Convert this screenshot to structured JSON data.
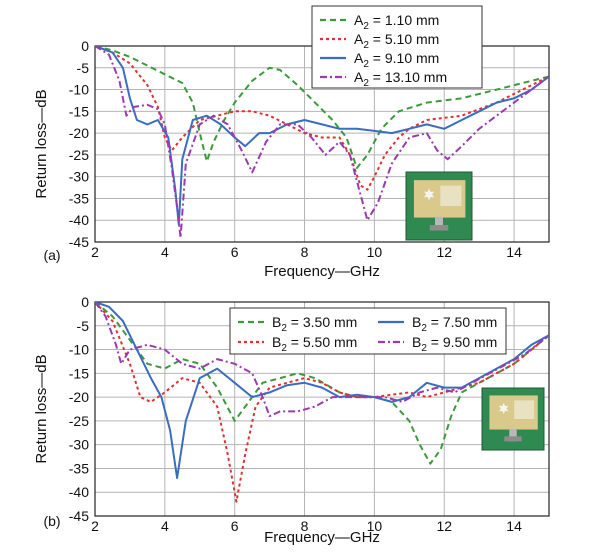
{
  "chart_data": [
    {
      "type": "line",
      "panel_label": "(a)",
      "xlabel": "Frequency—GHz",
      "ylabel": "Return loss—dB",
      "xlim": [
        2,
        15
      ],
      "ylim": [
        -45,
        0
      ],
      "xticks": [
        2,
        4,
        6,
        8,
        10,
        12,
        14
      ],
      "yticks": [
        0,
        -5,
        -10,
        -15,
        -20,
        -25,
        -30,
        -35,
        -40,
        -45
      ],
      "grid": true,
      "legend_position": "top-right",
      "inset": "antenna-photo",
      "series": [
        {
          "name": "A",
          "subscript": "2",
          "value_text": " = 1.10 mm",
          "color": "#3a9a3a",
          "dash": "6,4",
          "points": [
            [
              2,
              0
            ],
            [
              2.5,
              -1
            ],
            [
              3,
              -2.5
            ],
            [
              3.5,
              -4.5
            ],
            [
              4,
              -6.5
            ],
            [
              4.5,
              -8.5
            ],
            [
              4.8,
              -13
            ],
            [
              5,
              -20
            ],
            [
              5.2,
              -26.5
            ],
            [
              5.4,
              -22
            ],
            [
              5.7,
              -17
            ],
            [
              6,
              -13
            ],
            [
              6.5,
              -8
            ],
            [
              7,
              -5
            ],
            [
              7.3,
              -5.5
            ],
            [
              7.8,
              -9
            ],
            [
              8.3,
              -13
            ],
            [
              8.8,
              -17
            ],
            [
              9.2,
              -21
            ],
            [
              9.5,
              -28
            ],
            [
              9.8,
              -25
            ],
            [
              10.2,
              -19
            ],
            [
              10.7,
              -15
            ],
            [
              11.5,
              -13
            ],
            [
              12.5,
              -12
            ],
            [
              13.5,
              -10
            ],
            [
              14.5,
              -8
            ],
            [
              15,
              -7
            ]
          ]
        },
        {
          "name": "A",
          "subscript": "2",
          "value_text": " = 5.10 mm",
          "color": "#e03030",
          "dash": "3,3",
          "points": [
            [
              2,
              0
            ],
            [
              2.5,
              -1.5
            ],
            [
              3,
              -4
            ],
            [
              3.5,
              -9
            ],
            [
              3.8,
              -14
            ],
            [
              4,
              -21
            ],
            [
              4.2,
              -24
            ],
            [
              4.5,
              -21
            ],
            [
              5,
              -17
            ],
            [
              5.5,
              -16
            ],
            [
              6,
              -15
            ],
            [
              6.5,
              -15
            ],
            [
              7,
              -16
            ],
            [
              7.5,
              -18
            ],
            [
              8,
              -20
            ],
            [
              8.5,
              -21
            ],
            [
              9,
              -21
            ],
            [
              9.3,
              -25
            ],
            [
              9.6,
              -32
            ],
            [
              9.8,
              -33
            ],
            [
              10,
              -30
            ],
            [
              10.3,
              -25
            ],
            [
              10.7,
              -21
            ],
            [
              11,
              -19
            ],
            [
              11.5,
              -17
            ],
            [
              12.5,
              -16
            ],
            [
              13.5,
              -13
            ],
            [
              14.5,
              -9
            ],
            [
              15,
              -7
            ]
          ]
        },
        {
          "name": "A",
          "subscript": "2",
          "value_text": " = 9.10 mm",
          "color": "#3a6dbf",
          "dash": "",
          "points": [
            [
              2,
              0
            ],
            [
              2.5,
              -1.5
            ],
            [
              2.8,
              -5
            ],
            [
              3,
              -12
            ],
            [
              3.2,
              -17
            ],
            [
              3.5,
              -18
            ],
            [
              3.8,
              -17
            ],
            [
              4.1,
              -21
            ],
            [
              4.3,
              -33
            ],
            [
              4.4,
              -41
            ],
            [
              4.5,
              -26
            ],
            [
              4.8,
              -17
            ],
            [
              5.2,
              -16
            ],
            [
              5.6,
              -18
            ],
            [
              6,
              -21
            ],
            [
              6.3,
              -23
            ],
            [
              6.7,
              -20
            ],
            [
              7,
              -20
            ],
            [
              7.5,
              -18
            ],
            [
              8,
              -17
            ],
            [
              8.5,
              -18
            ],
            [
              9,
              -19
            ],
            [
              9.5,
              -19
            ],
            [
              10,
              -19.5
            ],
            [
              10.5,
              -20
            ],
            [
              11,
              -19
            ],
            [
              11.5,
              -18
            ],
            [
              12,
              -19
            ],
            [
              12.5,
              -17
            ],
            [
              13,
              -15
            ],
            [
              13.5,
              -13
            ],
            [
              14,
              -12
            ],
            [
              14.5,
              -10
            ],
            [
              15,
              -7
            ]
          ]
        },
        {
          "name": "A",
          "subscript": "2",
          "value_text": " = 13.10 mm",
          "color": "#9a3ab0",
          "dash": "7,3,2,3",
          "points": [
            [
              2,
              0
            ],
            [
              2.4,
              -2
            ],
            [
              2.7,
              -8
            ],
            [
              2.9,
              -16
            ],
            [
              3.1,
              -14
            ],
            [
              3.5,
              -13.5
            ],
            [
              3.8,
              -14.5
            ],
            [
              4,
              -18
            ],
            [
              4.2,
              -28
            ],
            [
              4.35,
              -37
            ],
            [
              4.45,
              -44
            ],
            [
              4.6,
              -27
            ],
            [
              5,
              -18
            ],
            [
              5.4,
              -16
            ],
            [
              5.8,
              -18
            ],
            [
              6.2,
              -24
            ],
            [
              6.5,
              -29
            ],
            [
              6.9,
              -22
            ],
            [
              7.3,
              -18
            ],
            [
              7.8,
              -18
            ],
            [
              8.2,
              -21
            ],
            [
              8.6,
              -25
            ],
            [
              9,
              -22
            ],
            [
              9.3,
              -25
            ],
            [
              9.6,
              -34
            ],
            [
              9.8,
              -40
            ],
            [
              10.1,
              -36
            ],
            [
              10.5,
              -27
            ],
            [
              11,
              -21
            ],
            [
              11.5,
              -20
            ],
            [
              11.8,
              -24
            ],
            [
              12.1,
              -26
            ],
            [
              12.5,
              -23
            ],
            [
              13,
              -19
            ],
            [
              13.5,
              -16
            ],
            [
              14,
              -13
            ],
            [
              14.5,
              -10
            ],
            [
              15,
              -7
            ]
          ]
        }
      ]
    },
    {
      "type": "line",
      "panel_label": "(b)",
      "xlabel": "Frequency—GHz",
      "ylabel": "Return loss—dB",
      "xlim": [
        2,
        15
      ],
      "ylim": [
        -45,
        0
      ],
      "xticks": [
        2,
        4,
        6,
        8,
        10,
        12,
        14
      ],
      "yticks": [
        0,
        -5,
        -10,
        -15,
        -20,
        -25,
        -30,
        -35,
        -40,
        -45
      ],
      "grid": true,
      "legend_position": "top-right",
      "inset": "antenna-photo",
      "series": [
        {
          "name": "B",
          "subscript": "2",
          "value_text": " = 3.50 mm",
          "color": "#3a9a3a",
          "dash": "6,4",
          "points": [
            [
              2,
              0
            ],
            [
              2.5,
              -3
            ],
            [
              3,
              -8
            ],
            [
              3.5,
              -13
            ],
            [
              4,
              -14
            ],
            [
              4.5,
              -12
            ],
            [
              5,
              -13
            ],
            [
              5.5,
              -18
            ],
            [
              6,
              -25
            ],
            [
              6.3,
              -22
            ],
            [
              6.8,
              -17
            ],
            [
              7.3,
              -16
            ],
            [
              7.8,
              -15
            ],
            [
              8.3,
              -16
            ],
            [
              9,
              -19
            ],
            [
              9.5,
              -20
            ],
            [
              10,
              -20
            ],
            [
              10.5,
              -21
            ],
            [
              11,
              -25
            ],
            [
              11.3,
              -30
            ],
            [
              11.6,
              -34
            ],
            [
              11.9,
              -31
            ],
            [
              12.2,
              -24
            ],
            [
              12.5,
              -19
            ],
            [
              13,
              -17
            ],
            [
              13.5,
              -15
            ],
            [
              14,
              -13
            ],
            [
              14.5,
              -10
            ],
            [
              15,
              -7
            ]
          ]
        },
        {
          "name": "B",
          "subscript": "2",
          "value_text": " = 5.50 mm",
          "color": "#e03030",
          "dash": "3,3",
          "points": [
            [
              2,
              0
            ],
            [
              2.5,
              -4
            ],
            [
              3,
              -13
            ],
            [
              3.3,
              -20
            ],
            [
              3.6,
              -21
            ],
            [
              4,
              -19
            ],
            [
              4.5,
              -16
            ],
            [
              5,
              -17
            ],
            [
              5.5,
              -22
            ],
            [
              5.8,
              -32
            ],
            [
              6.05,
              -42
            ],
            [
              6.3,
              -32
            ],
            [
              6.6,
              -22
            ],
            [
              7,
              -18
            ],
            [
              7.5,
              -17
            ],
            [
              8,
              -16
            ],
            [
              8.5,
              -17
            ],
            [
              9,
              -19
            ],
            [
              9.5,
              -20
            ],
            [
              10,
              -20
            ],
            [
              10.5,
              -19.5
            ],
            [
              11,
              -19
            ],
            [
              11.5,
              -20
            ],
            [
              12,
              -19
            ],
            [
              12.5,
              -18
            ],
            [
              13,
              -17
            ],
            [
              13.5,
              -15
            ],
            [
              14,
              -13
            ],
            [
              14.5,
              -10
            ],
            [
              15,
              -7
            ]
          ]
        },
        {
          "name": "B",
          "subscript": "2",
          "value_text": " = 7.50 mm",
          "color": "#3a6dbf",
          "dash": "",
          "points": [
            [
              2,
              0
            ],
            [
              2.4,
              -1
            ],
            [
              2.8,
              -4
            ],
            [
              3.2,
              -10
            ],
            [
              3.6,
              -16
            ],
            [
              3.9,
              -20
            ],
            [
              4.15,
              -27
            ],
            [
              4.35,
              -37
            ],
            [
              4.6,
              -25
            ],
            [
              5,
              -16
            ],
            [
              5.5,
              -14
            ],
            [
              6,
              -17
            ],
            [
              6.5,
              -20
            ],
            [
              7,
              -19
            ],
            [
              7.5,
              -17.5
            ],
            [
              8,
              -17
            ],
            [
              8.5,
              -18
            ],
            [
              9,
              -20
            ],
            [
              9.5,
              -19.5
            ],
            [
              10,
              -20
            ],
            [
              10.5,
              -21
            ],
            [
              11,
              -20
            ],
            [
              11.5,
              -17
            ],
            [
              12,
              -18
            ],
            [
              12.5,
              -18
            ],
            [
              13,
              -16
            ],
            [
              13.5,
              -14
            ],
            [
              14,
              -12
            ],
            [
              14.5,
              -9
            ],
            [
              15,
              -7
            ]
          ]
        },
        {
          "name": "B",
          "subscript": "2",
          "value_text": " = 9.50 mm",
          "color": "#9a3ab0",
          "dash": "7,3,2,3",
          "points": [
            [
              2,
              0
            ],
            [
              2.3,
              -3
            ],
            [
              2.6,
              -9
            ],
            [
              2.75,
              -13
            ],
            [
              3,
              -10
            ],
            [
              3.5,
              -9
            ],
            [
              4,
              -10
            ],
            [
              4.5,
              -13
            ],
            [
              5,
              -14
            ],
            [
              5.5,
              -12
            ],
            [
              6,
              -13
            ],
            [
              6.5,
              -15
            ],
            [
              6.8,
              -20
            ],
            [
              7,
              -24
            ],
            [
              7.3,
              -23
            ],
            [
              7.8,
              -23
            ],
            [
              8.3,
              -22
            ],
            [
              8.8,
              -20
            ],
            [
              9.3,
              -20
            ],
            [
              9.8,
              -20
            ],
            [
              10.3,
              -20
            ],
            [
              10.8,
              -21
            ],
            [
              11.3,
              -19
            ],
            [
              11.8,
              -18
            ],
            [
              12.3,
              -19
            ],
            [
              12.8,
              -17
            ],
            [
              13.3,
              -15
            ],
            [
              13.8,
              -13
            ],
            [
              14.3,
              -11
            ],
            [
              15,
              -7
            ]
          ]
        }
      ]
    }
  ]
}
